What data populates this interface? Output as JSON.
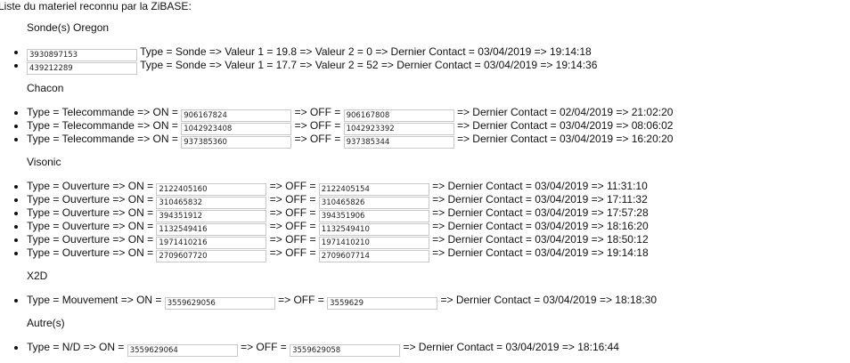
{
  "title": "Liste du materiel reconnu par la ZiBASE:",
  "sections": [
    {
      "name": "Sonde(s) Oregon",
      "rows": [
        {
          "id": "3930897153",
          "text": "Type = Sonde => Valeur 1 = 19.8 => Valeur 2 = 0 => Dernier Contact = 03/04/2019 => 19:14:18"
        },
        {
          "id": "439212289",
          "text": "Type = Sonde => Valeur 1 = 17.7 => Valeur 2 = 52 => Dernier Contact = 03/04/2019 => 19:14:36"
        }
      ]
    },
    {
      "name": "Chacon",
      "rows": [
        {
          "type": "Type = Telecommande => ON =",
          "on": "906167824",
          "off": "906167808",
          "contact": "=> Dernier Contact = 02/04/2019 => 21:02:20"
        },
        {
          "type": "Type = Telecommande => ON =",
          "on": "1042923408",
          "off": "1042923392",
          "contact": "=> Dernier Contact = 03/04/2019 => 08:06:02"
        },
        {
          "type": "Type = Telecommande => ON =",
          "on": "937385360",
          "off": "937385344",
          "contact": "=> Dernier Contact = 03/04/2019 => 16:20:20"
        }
      ]
    },
    {
      "name": "Visonic",
      "rows": [
        {
          "type": "Type = Ouverture => ON =",
          "on": "2122405160",
          "off": "2122405154",
          "contact": "=> Dernier Contact = 03/04/2019 => 11:31:10"
        },
        {
          "type": "Type = Ouverture => ON =",
          "on": "310465832",
          "off": "310465826",
          "contact": "=> Dernier Contact = 03/04/2019 => 17:11:32"
        },
        {
          "type": "Type = Ouverture => ON =",
          "on": "394351912",
          "off": "394351906",
          "contact": "=> Dernier Contact = 03/04/2019 => 17:57:28"
        },
        {
          "type": "Type = Ouverture => ON =",
          "on": "1132549416",
          "off": "1132549410",
          "contact": "=> Dernier Contact = 03/04/2019 => 18:16:20"
        },
        {
          "type": "Type = Ouverture => ON =",
          "on": "1971410216",
          "off": "1971410210",
          "contact": "=> Dernier Contact = 03/04/2019 => 18:50:12"
        },
        {
          "type": "Type = Ouverture => ON =",
          "on": "2709607720",
          "off": "2709607714",
          "contact": "=> Dernier Contact = 03/04/2019 => 19:14:18"
        }
      ]
    },
    {
      "name": "X2D",
      "rows": [
        {
          "type": "Type = Mouvement => ON =",
          "on": "3559629056",
          "off": "3559629",
          "contact": "=> Dernier Contact = 03/04/2019 => 18:18:30"
        }
      ]
    },
    {
      "name": "Autre(s)",
      "rows": [
        {
          "type": "Type = N/D => ON =",
          "on": "3559629064",
          "off": "3559629058",
          "contact": "=> Dernier Contact = 03/04/2019 => 18:16:44"
        }
      ]
    }
  ],
  "off_label": "=> OFF ="
}
